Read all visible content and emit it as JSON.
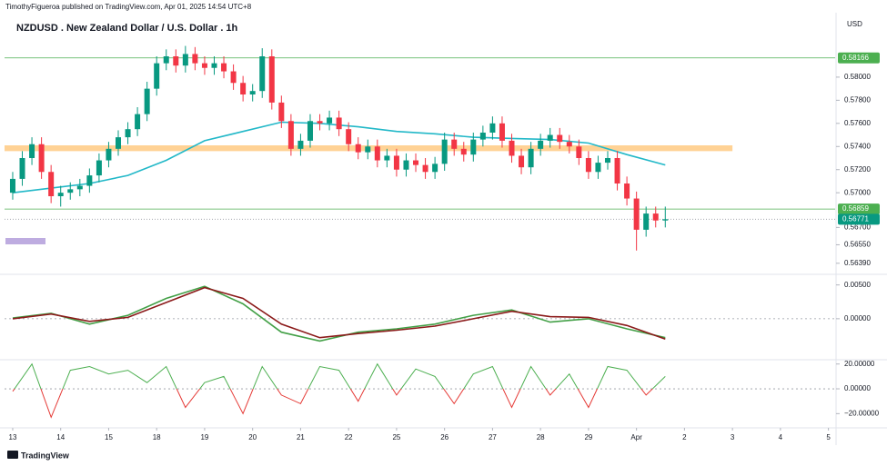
{
  "header": "TimothyFigueroa published on TradingView.com, Apr 01, 2025 14:54 UTC+8",
  "footer": "TradingView",
  "chart_data": [
    {
      "type": "candlestick",
      "title": "NZDUSD . New Zealand Dollar / U.S. Dollar . 1h",
      "currency": "USD",
      "up_color": "#089981",
      "down_color": "#f23645",
      "xlim": [
        -0.85,
        85.7
      ],
      "xticks": [
        {
          "value": 0,
          "label": "13"
        },
        {
          "value": 5,
          "label": "14"
        },
        {
          "value": 10,
          "label": "15"
        },
        {
          "value": 15,
          "label": "18"
        },
        {
          "value": 20,
          "label": "19"
        },
        {
          "value": 25,
          "label": "20"
        },
        {
          "value": 30,
          "label": "21"
        },
        {
          "value": 35,
          "label": "22"
        },
        {
          "value": 40,
          "label": "25"
        },
        {
          "value": 45,
          "label": "26"
        },
        {
          "value": 50,
          "label": "27"
        },
        {
          "value": 55,
          "label": "28"
        },
        {
          "value": 60,
          "label": "29"
        },
        {
          "value": 65,
          "label": "Apr"
        },
        {
          "value": 70,
          "label": "2"
        },
        {
          "value": 75,
          "label": "3"
        },
        {
          "value": 80,
          "label": "4"
        },
        {
          "value": 85,
          "label": "5"
        }
      ],
      "ylim": [
        0.5631,
        0.5851
      ],
      "yticks": [
        {
          "value": 0.58,
          "label": "0.58000"
        },
        {
          "value": 0.578,
          "label": "0.57800"
        },
        {
          "value": 0.576,
          "label": "0.57600"
        },
        {
          "value": 0.574,
          "label": "0.57400"
        },
        {
          "value": 0.572,
          "label": "0.57200"
        },
        {
          "value": 0.57,
          "label": "0.57000"
        },
        {
          "value": 0.567,
          "label": "0.56700"
        },
        {
          "value": 0.5655,
          "label": "0.56550"
        },
        {
          "value": 0.5639,
          "label": "0.56390"
        }
      ],
      "open": [
        0.57,
        0.5712,
        0.573,
        0.5742,
        0.5718,
        0.5697,
        0.57,
        0.5703,
        0.5706,
        0.5715,
        0.5728,
        0.5738,
        0.5748,
        0.5755,
        0.5768,
        0.579,
        0.5812,
        0.5818,
        0.581,
        0.582,
        0.5812,
        0.5808,
        0.5812,
        0.5805,
        0.5795,
        0.5785,
        0.5788,
        0.5818,
        0.5778,
        0.5762,
        0.5738,
        0.5745,
        0.5762,
        0.576,
        0.5765,
        0.5755,
        0.5742,
        0.5735,
        0.574,
        0.5728,
        0.5732,
        0.572,
        0.5728,
        0.5724,
        0.5718,
        0.5725,
        0.5746,
        0.5738,
        0.5733,
        0.5746,
        0.5752,
        0.576,
        0.5745,
        0.5732,
        0.5722,
        0.5738,
        0.5745,
        0.575,
        0.5744,
        0.574,
        0.573,
        0.5718,
        0.5726,
        0.573,
        0.5708,
        0.5695,
        0.5668,
        0.5682,
        0.5676
      ],
      "high": [
        0.5718,
        0.5736,
        0.5748,
        0.5748,
        0.5724,
        0.5706,
        0.5709,
        0.5712,
        0.5721,
        0.5734,
        0.5744,
        0.5754,
        0.5761,
        0.5774,
        0.5796,
        0.5818,
        0.5824,
        0.5824,
        0.5827,
        0.5826,
        0.5818,
        0.5818,
        0.5818,
        0.5811,
        0.5801,
        0.5794,
        0.5825,
        0.5824,
        0.5784,
        0.5768,
        0.5751,
        0.5768,
        0.5768,
        0.5771,
        0.5771,
        0.5761,
        0.5748,
        0.5746,
        0.5746,
        0.5738,
        0.5738,
        0.5734,
        0.5734,
        0.573,
        0.5731,
        0.5752,
        0.5752,
        0.5744,
        0.5752,
        0.5758,
        0.5766,
        0.5766,
        0.5751,
        0.5738,
        0.5744,
        0.5751,
        0.5756,
        0.5756,
        0.575,
        0.5746,
        0.5736,
        0.5732,
        0.5736,
        0.5736,
        0.5714,
        0.5701,
        0.5688,
        0.5688,
        0.5688
      ],
      "low": [
        0.5694,
        0.5706,
        0.5724,
        0.5712,
        0.5691,
        0.5688,
        0.5694,
        0.5697,
        0.57,
        0.5709,
        0.5722,
        0.5732,
        0.5742,
        0.5749,
        0.5762,
        0.5784,
        0.5806,
        0.5804,
        0.5804,
        0.5806,
        0.5802,
        0.5802,
        0.5799,
        0.5789,
        0.5779,
        0.5779,
        0.5782,
        0.5772,
        0.5756,
        0.5732,
        0.5732,
        0.5739,
        0.5754,
        0.5754,
        0.5749,
        0.5736,
        0.5729,
        0.5729,
        0.5722,
        0.5722,
        0.5714,
        0.5714,
        0.5718,
        0.5712,
        0.5712,
        0.5719,
        0.5732,
        0.5727,
        0.5727,
        0.574,
        0.5746,
        0.5739,
        0.5726,
        0.5716,
        0.5716,
        0.5732,
        0.5739,
        0.5738,
        0.5734,
        0.5724,
        0.5712,
        0.5712,
        0.572,
        0.5702,
        0.5689,
        0.565,
        0.5662,
        0.567,
        0.567
      ],
      "close": [
        0.5712,
        0.573,
        0.5742,
        0.5718,
        0.5697,
        0.57,
        0.5703,
        0.5706,
        0.5715,
        0.5728,
        0.5738,
        0.5748,
        0.5755,
        0.5768,
        0.579,
        0.5812,
        0.5818,
        0.581,
        0.582,
        0.5812,
        0.5808,
        0.5812,
        0.5805,
        0.5795,
        0.5785,
        0.5788,
        0.5818,
        0.5778,
        0.5762,
        0.5738,
        0.5745,
        0.5762,
        0.576,
        0.5765,
        0.5755,
        0.5742,
        0.5735,
        0.574,
        0.5728,
        0.5732,
        0.572,
        0.5728,
        0.5724,
        0.5718,
        0.5725,
        0.5746,
        0.5738,
        0.5733,
        0.5746,
        0.5752,
        0.576,
        0.5745,
        0.5732,
        0.5722,
        0.5738,
        0.5745,
        0.575,
        0.5744,
        0.574,
        0.573,
        0.5718,
        0.5726,
        0.573,
        0.5708,
        0.5695,
        0.5668,
        0.5682,
        0.5676,
        0.56771
      ],
      "series": [
        {
          "color": "#22b8c8",
          "x": [
            0,
            4,
            8,
            12,
            16,
            20,
            24,
            28,
            32,
            36,
            40,
            44,
            48,
            52,
            56,
            60,
            64,
            68
          ],
          "values": [
            0.57,
            0.5704,
            0.5708,
            0.5715,
            0.5728,
            0.5745,
            0.5753,
            0.5761,
            0.576,
            0.5757,
            0.5753,
            0.5751,
            0.5748,
            0.5747,
            0.5746,
            0.5743,
            0.5733,
            0.5724
          ]
        }
      ],
      "zone": {
        "low": 0.5736,
        "high": 0.5741,
        "color": "#ffc77a"
      },
      "levels": [
        {
          "value": 0.58166,
          "label": "0.58166",
          "color": "#4caf50",
          "style": "solid"
        },
        {
          "value": 0.56859,
          "label": "0.56859",
          "color": "#4caf50",
          "style": "solid"
        },
        {
          "value": 0.56771,
          "label": "0.56771",
          "color": "#089981",
          "style": "dotted"
        }
      ]
    },
    {
      "type": "line",
      "ylim": [
        -0.0058,
        0.0063
      ],
      "yticks": [
        {
          "value": 0.005,
          "label": "0.00500"
        },
        {
          "value": 0,
          "label": "0.00000"
        }
      ],
      "x": [
        0,
        4,
        8,
        12,
        16,
        20,
        24,
        28,
        32,
        36,
        40,
        44,
        48,
        52,
        56,
        60,
        64,
        68
      ],
      "series": [
        {
          "color": "#43a047",
          "values": [
            0.0001,
            0.0008,
            -0.0008,
            0.0005,
            0.003,
            0.0048,
            0.0022,
            -0.002,
            -0.0033,
            -0.002,
            -0.0015,
            -0.0008,
            0.0005,
            0.0013,
            -0.0005,
            0.0,
            -0.0015,
            -0.0028
          ]
        },
        {
          "color": "#8b1a1a",
          "values": [
            0.0,
            0.0007,
            -0.0004,
            0.0002,
            0.0024,
            0.0046,
            0.003,
            -0.0008,
            -0.0028,
            -0.0022,
            -0.0017,
            -0.0011,
            0.0,
            0.0011,
            0.0003,
            0.0002,
            -0.001,
            -0.003
          ]
        }
      ]
    },
    {
      "type": "line",
      "ylim": [
        -30,
        22
      ],
      "yticks": [
        {
          "value": 20,
          "label": "20.00000"
        },
        {
          "value": 0,
          "label": "0.00000"
        },
        {
          "value": -20,
          "label": "−20.00000"
        }
      ],
      "x": [
        0,
        2,
        4,
        6,
        8,
        10,
        12,
        14,
        16,
        18,
        20,
        22,
        24,
        26,
        28,
        30,
        32,
        34,
        36,
        38,
        40,
        42,
        44,
        46,
        48,
        50,
        52,
        54,
        56,
        58,
        60,
        62,
        64,
        66,
        68
      ],
      "series": [
        {
          "color": "#4caf50",
          "negative_color": "#e53935",
          "values": [
            -2,
            20,
            -23,
            15,
            18,
            12,
            15,
            5,
            18,
            -15,
            5,
            10,
            -20,
            18,
            -5,
            -12,
            18,
            15,
            -10,
            20,
            -5,
            16,
            10,
            -12,
            12,
            18,
            -15,
            18,
            -5,
            12,
            -15,
            18,
            15,
            -5,
            10
          ]
        }
      ]
    }
  ]
}
